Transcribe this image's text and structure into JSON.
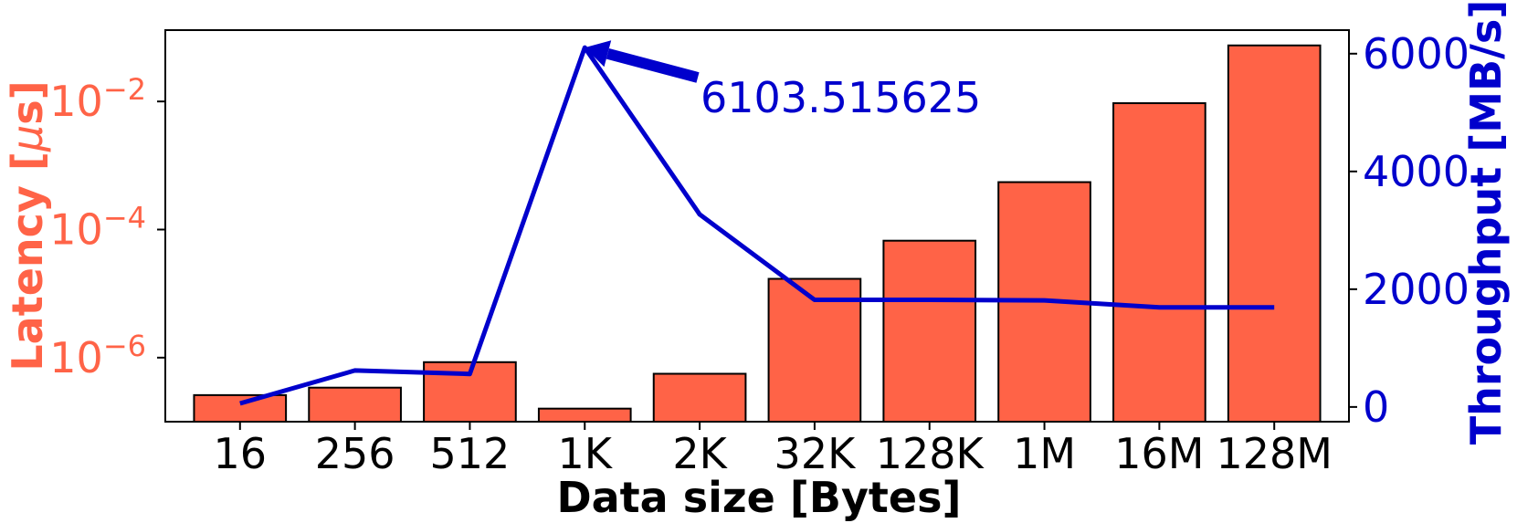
{
  "chart_data": {
    "type": "bar",
    "categories": [
      "16",
      "256",
      "512",
      "1K",
      "2K",
      "32K",
      "128K",
      "1M",
      "16M",
      "128M"
    ],
    "xlabel": "Data size [Bytes]",
    "series": [
      {
        "name": "Latency",
        "kind": "bar",
        "axis": "left",
        "unit": "µs",
        "scale": "log",
        "color": "#ff6347",
        "values": [
          2.6e-07,
          3.4e-07,
          8.5e-07,
          1.6e-07,
          5.6e-07,
          1.7e-05,
          6.7e-05,
          0.00055,
          0.0094,
          0.075
        ]
      },
      {
        "name": "Throughput",
        "kind": "line",
        "axis": "right",
        "unit": "MB/s",
        "color": "#0000cc",
        "values": [
          60,
          620,
          560,
          6103.515625,
          3270,
          1820,
          1820,
          1810,
          1690,
          1690
        ]
      }
    ],
    "left_axis": {
      "label_prefix": "Latency [",
      "label_mu": "μ",
      "label_suffix": "s]",
      "scale": "log",
      "range": [
        1e-07,
        0.13
      ],
      "ticks": [
        {
          "value": 1e-06,
          "base": "10",
          "exp": "−6"
        },
        {
          "value": 0.0001,
          "base": "10",
          "exp": "−4"
        },
        {
          "value": 0.01,
          "base": "10",
          "exp": "−2"
        }
      ]
    },
    "right_axis": {
      "label": "Throughput [MB/s]",
      "range": [
        -250,
        6400
      ],
      "ticks": [
        0,
        2000,
        4000,
        6000
      ]
    },
    "annotation": {
      "text": "6103.515625",
      "target_category": "1K",
      "target_value": 6103.515625
    },
    "colors": {
      "latency": "#ff6347",
      "throughput": "#0000cc",
      "frame": "#000000"
    },
    "grid": false
  }
}
